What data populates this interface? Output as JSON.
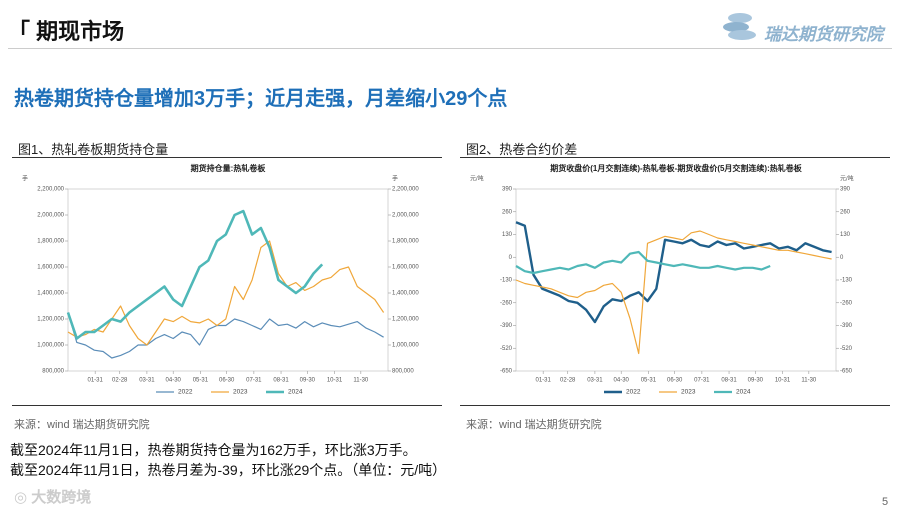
{
  "header": "「 期现市场",
  "brand": "瑞达期货研究院",
  "headline": "热卷期货持仓量增加3万手；近月走强，月差缩小29个点",
  "figures": [
    {
      "caption": "图1、热轧卷板期货持仓量",
      "source": "来源：wind   瑞达期货研究院"
    },
    {
      "caption": "图2、热卷合约价差",
      "source": "来源：wind   瑞达期货研究院"
    }
  ],
  "notes": [
    "截至2024年11月1日，热卷期货持仓量为162万手，环比涨3万手。",
    "截至2024年11月1日，热卷月差为-39，环比涨29个点。（单位：元/吨）"
  ],
  "page_number": "5",
  "watermark": "大数跨境",
  "chart_data": [
    {
      "type": "line",
      "title": "期货持仓量:热轧卷板",
      "unit": "手",
      "x": [
        0,
        10,
        20,
        30,
        40,
        50,
        60,
        70,
        80,
        90,
        100,
        110,
        120,
        130,
        140,
        150,
        160,
        170,
        180,
        190,
        200,
        210,
        220,
        230,
        240,
        250,
        260,
        270,
        280,
        290,
        300,
        310,
        320,
        330,
        340,
        350,
        360
      ],
      "xlim": [
        0,
        365
      ],
      "xticks": [
        {
          "value": 31,
          "label": "01-31"
        },
        {
          "value": 59,
          "label": "02-28"
        },
        {
          "value": 90,
          "label": "03-31"
        },
        {
          "value": 120,
          "label": "04-30"
        },
        {
          "value": 151,
          "label": "05-31"
        },
        {
          "value": 181,
          "label": "06-30"
        },
        {
          "value": 212,
          "label": "07-31"
        },
        {
          "value": 243,
          "label": "08-31"
        },
        {
          "value": 273,
          "label": "09-30"
        },
        {
          "value": 304,
          "label": "10-31"
        },
        {
          "value": 334,
          "label": "11-30"
        }
      ],
      "ylim": [
        800000,
        2200000
      ],
      "yticks": [
        {
          "value": 800000,
          "label": "800,000"
        },
        {
          "value": 1000000,
          "label": "1,000,000"
        },
        {
          "value": 1200000,
          "label": "1,200,000"
        },
        {
          "value": 1400000,
          "label": "1,400,000"
        },
        {
          "value": 1600000,
          "label": "1,600,000"
        },
        {
          "value": 1800000,
          "label": "1,800,000"
        },
        {
          "value": 2000000,
          "label": "2,000,000"
        },
        {
          "value": 2200000,
          "label": "2,200,000"
        }
      ],
      "series": [
        {
          "name": "2022",
          "color": "#5b8db8",
          "width": 1.2,
          "values": [
            1250000,
            1020000,
            1000000,
            960000,
            950000,
            900000,
            920000,
            950000,
            1000000,
            1000000,
            1050000,
            1080000,
            1050000,
            1100000,
            1080000,
            1000000,
            1120000,
            1150000,
            1150000,
            1200000,
            1180000,
            1150000,
            1120000,
            1200000,
            1150000,
            1160000,
            1130000,
            1180000,
            1140000,
            1170000,
            1150000,
            1140000,
            1160000,
            1180000,
            1130000,
            1100000,
            1060000
          ]
        },
        {
          "name": "2023",
          "color": "#f0a73a",
          "width": 1.2,
          "values": [
            1100000,
            1060000,
            1080000,
            1120000,
            1100000,
            1200000,
            1300000,
            1150000,
            1050000,
            1000000,
            1100000,
            1200000,
            1180000,
            1220000,
            1180000,
            1170000,
            1200000,
            1150000,
            1200000,
            1450000,
            1350000,
            1500000,
            1750000,
            1800000,
            1550000,
            1450000,
            1480000,
            1420000,
            1450000,
            1500000,
            1520000,
            1580000,
            1600000,
            1450000,
            1400000,
            1350000,
            1250000
          ]
        },
        {
          "name": "2024",
          "color": "#4fb8b8",
          "width": 2.6,
          "values": [
            1250000,
            1050000,
            1100000,
            1100000,
            1150000,
            1200000,
            1180000,
            1250000,
            1300000,
            1350000,
            1400000,
            1450000,
            1350000,
            1300000,
            1450000,
            1600000,
            1650000,
            1800000,
            1850000,
            2000000,
            2030000,
            1850000,
            1900000,
            1750000,
            1500000,
            1450000,
            1400000,
            1450000,
            1550000,
            1620000,
            null,
            null,
            null,
            null,
            null,
            null,
            null
          ]
        }
      ]
    },
    {
      "type": "line",
      "title": "期货收盘价(1月交割连续)-热轧卷板-期货收盘价(5月交割连续):热轧卷板",
      "unit": "元/吨",
      "x": [
        0,
        10,
        20,
        30,
        40,
        50,
        60,
        70,
        80,
        90,
        100,
        110,
        120,
        130,
        140,
        150,
        160,
        170,
        180,
        190,
        200,
        210,
        220,
        230,
        240,
        250,
        260,
        270,
        280,
        290,
        300,
        310,
        320,
        330,
        340,
        350,
        360
      ],
      "xlim": [
        0,
        365
      ],
      "xticks": [
        {
          "value": 31,
          "label": "01-31"
        },
        {
          "value": 59,
          "label": "02-28"
        },
        {
          "value": 90,
          "label": "03-31"
        },
        {
          "value": 120,
          "label": "04-30"
        },
        {
          "value": 151,
          "label": "05-31"
        },
        {
          "value": 181,
          "label": "06-30"
        },
        {
          "value": 212,
          "label": "07-31"
        },
        {
          "value": 243,
          "label": "08-31"
        },
        {
          "value": 273,
          "label": "09-30"
        },
        {
          "value": 304,
          "label": "10-31"
        },
        {
          "value": 334,
          "label": "11-30"
        }
      ],
      "ylim": [
        -650,
        390
      ],
      "yticks": [
        -650,
        -520,
        -390,
        -260,
        -130,
        0,
        130,
        260,
        390
      ],
      "series": [
        {
          "name": "2022",
          "color": "#1f5f8b",
          "width": 2.4,
          "values": [
            200,
            180,
            -100,
            -180,
            -200,
            -220,
            -250,
            -260,
            -300,
            -370,
            -280,
            -240,
            -250,
            -220,
            -200,
            -250,
            -180,
            100,
            90,
            80,
            100,
            70,
            60,
            90,
            70,
            80,
            50,
            60,
            70,
            80,
            50,
            60,
            40,
            80,
            60,
            40,
            30
          ]
        },
        {
          "name": "2023",
          "color": "#f0a73a",
          "width": 1.2,
          "values": [
            -130,
            -150,
            -160,
            -170,
            -180,
            -200,
            -220,
            -230,
            -200,
            -190,
            -160,
            -150,
            -200,
            -350,
            -550,
            80,
            100,
            120,
            110,
            100,
            140,
            150,
            130,
            110,
            100,
            90,
            80,
            70,
            60,
            50,
            40,
            40,
            30,
            20,
            10,
            0,
            -10
          ]
        },
        {
          "name": "2024",
          "color": "#4fb8b8",
          "width": 2.2,
          "values": [
            -50,
            -80,
            -90,
            -80,
            -70,
            -60,
            -70,
            -50,
            -40,
            -60,
            -30,
            -20,
            -30,
            20,
            30,
            -20,
            -30,
            -40,
            -50,
            -40,
            -50,
            -60,
            -60,
            -50,
            -60,
            -70,
            -60,
            -60,
            -70,
            -50,
            null,
            null,
            null,
            null,
            null,
            null,
            null
          ]
        }
      ]
    }
  ]
}
